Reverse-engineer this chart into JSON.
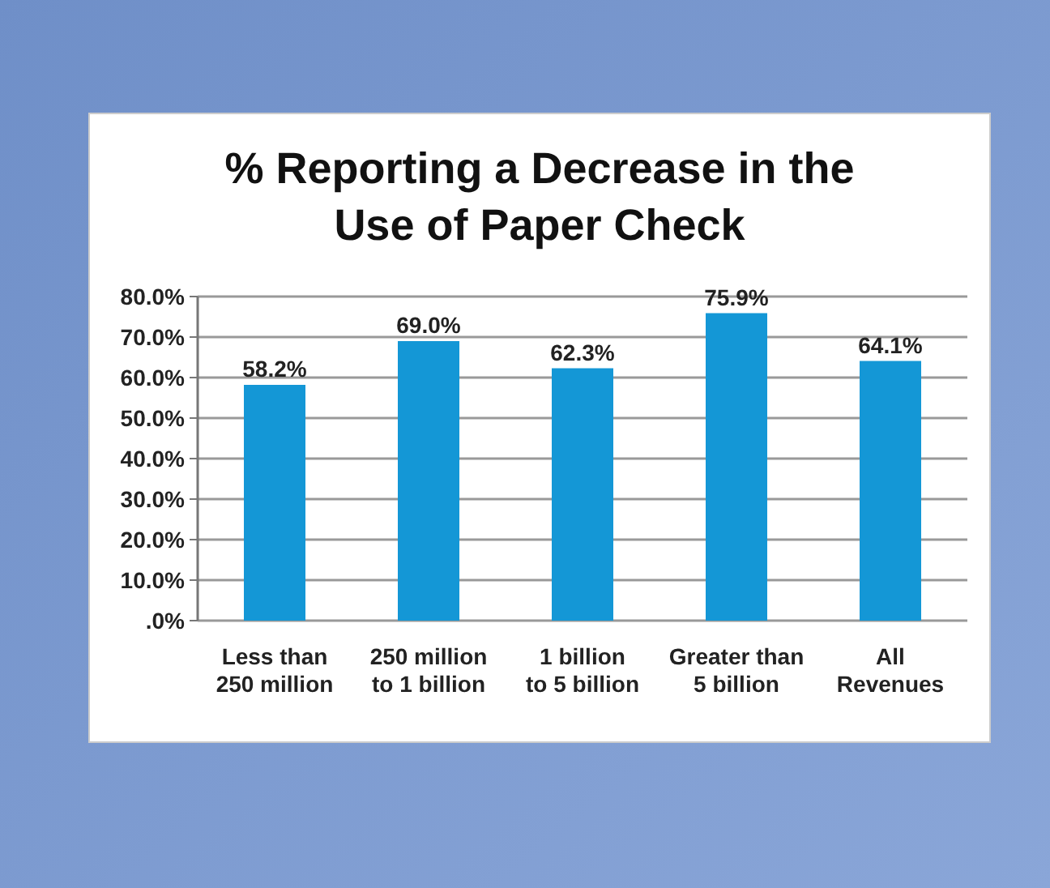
{
  "chart_data": {
    "type": "bar",
    "title": "% Reporting a Decrease in the\nUse of Paper Check",
    "categories": [
      "Less than\n250 million",
      "250 million\nto 1 billion",
      "1 billion\nto 5 billion",
      "Greater than\n5 billion",
      "All\nRevenues"
    ],
    "values": [
      58.2,
      69.0,
      62.3,
      75.9,
      64.1
    ],
    "color": "#1497d6",
    "value_labels": [
      "58.2%",
      "69.0%",
      "62.3%",
      "75.9%",
      "64.1%"
    ],
    "ylim": [
      0,
      80
    ],
    "yticks": [
      {
        "value": 0,
        "label": ".0%"
      },
      {
        "value": 10,
        "label": "10.0%"
      },
      {
        "value": 20,
        "label": "20.0%"
      },
      {
        "value": 30,
        "label": "30.0%"
      },
      {
        "value": 40,
        "label": "40.0%"
      },
      {
        "value": 50,
        "label": "50.0%"
      },
      {
        "value": 60,
        "label": "60.0%"
      },
      {
        "value": 70,
        "label": "70.0%"
      },
      {
        "value": 80,
        "label": "80.0%"
      }
    ],
    "grid": "y"
  }
}
